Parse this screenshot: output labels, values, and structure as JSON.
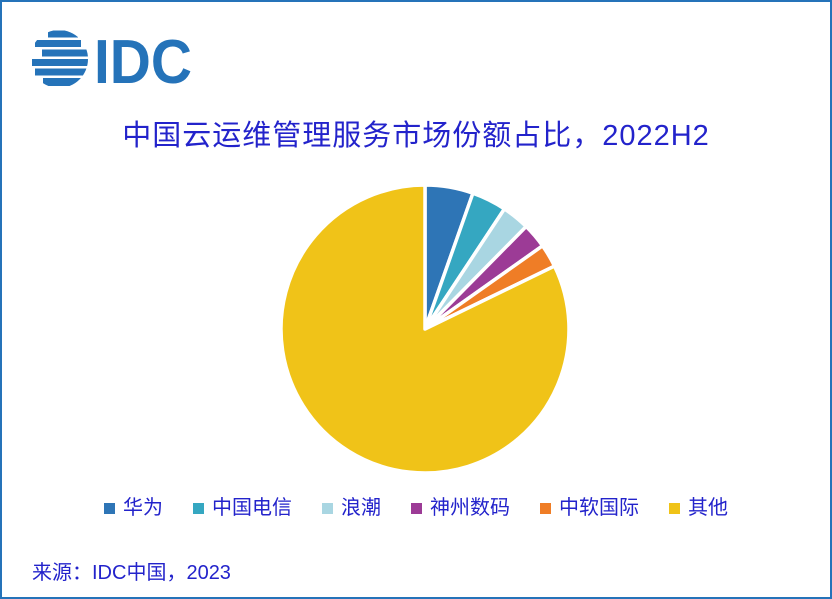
{
  "logo": {
    "text": "IDC",
    "color": "#2573B9"
  },
  "frame": {
    "border_color": "#2573B9",
    "background": "#FFFFFF"
  },
  "title": {
    "text": "中国云运维管理服务市场份额占比，2022H2",
    "color": "#2323CB"
  },
  "source": {
    "text": "来源：IDC中国，2023"
  },
  "chart_data": {
    "type": "pie",
    "title": "中国云运维管理服务市场份额占比，2022H2",
    "unit": "%",
    "start_angle_deg": 0,
    "direction": "clockwise",
    "slice_gap_color": "#FFFFFF",
    "legend_position": "bottom",
    "text_color": "#2323CB",
    "series": [
      {
        "name": "华为",
        "value": 5.4,
        "color": "#2E75B6"
      },
      {
        "name": "中国电信",
        "value": 3.9,
        "color": "#35A7C1"
      },
      {
        "name": "浪潮",
        "value": 3.1,
        "color": "#A9D6E2"
      },
      {
        "name": "神州数码",
        "value": 2.8,
        "color": "#9C3B96"
      },
      {
        "name": "中软国际",
        "value": 2.6,
        "color": "#EF7D26"
      },
      {
        "name": "其他",
        "value": 82.2,
        "color": "#F0C318"
      }
    ]
  }
}
